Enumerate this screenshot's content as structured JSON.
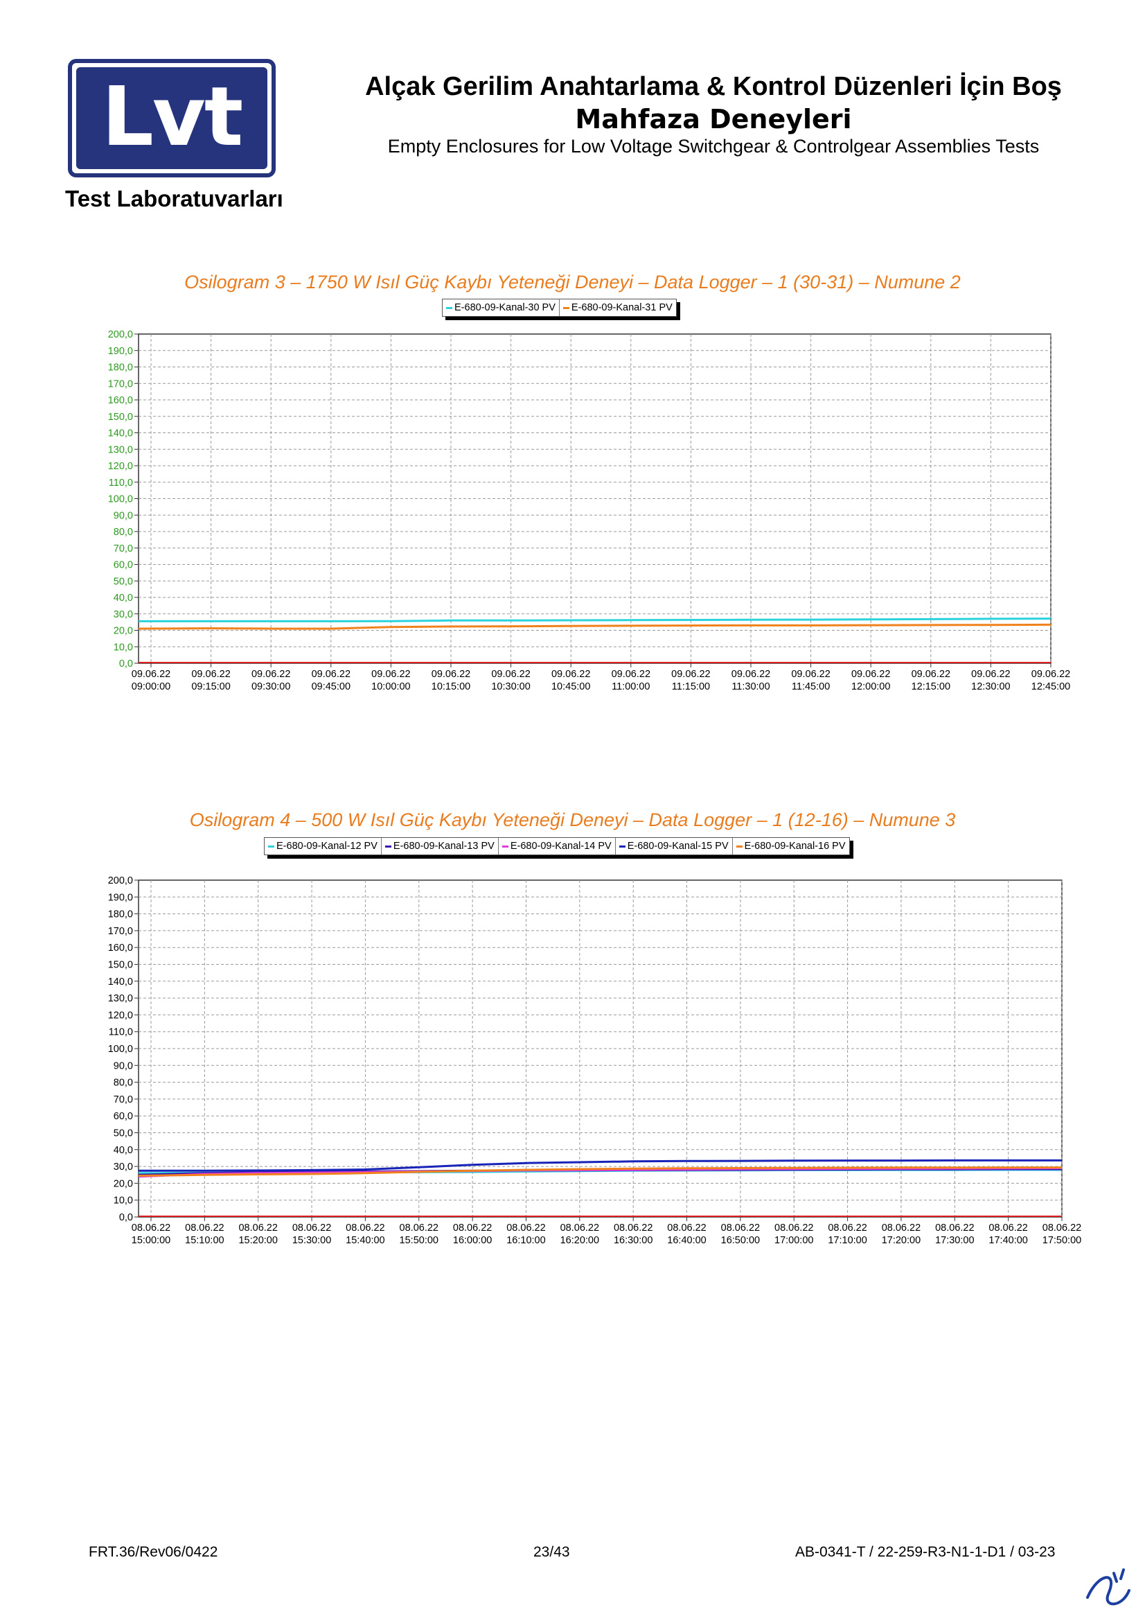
{
  "header": {
    "logo_text": "Lvt",
    "lab_name": "Test Laboratuvarları",
    "title_line1": "Alçak Gerilim Anahtarlama & Kontrol Düzenleri İçin Boş",
    "title_line2": "Mahfaza Deneyleri",
    "title_en": "Empty Enclosures for Low Voltage Switchgear & Controlgear Assemblies Tests"
  },
  "chart_data": [
    {
      "type": "line",
      "title": "Osilogram 3 – 1750 W Isıl Güç Kaybı Yeteneği Deneyi – Data Logger – 1 (30-31) – Numune 2",
      "xlabel": "",
      "ylabel": "",
      "ylim": [
        0,
        200
      ],
      "y_ticks": [
        "200,0",
        "190,0",
        "180,0",
        "170,0",
        "160,0",
        "150,0",
        "140,0",
        "130,0",
        "120,0",
        "110,0",
        "100,0",
        "90,0",
        "80,0",
        "70,0",
        "60,0",
        "50,0",
        "40,0",
        "30,0",
        "20,0",
        "10,0",
        "0,0"
      ],
      "y_tick_color": "#2a9a1c",
      "x_ticks": [
        [
          "09.06.22",
          "09:00:00"
        ],
        [
          "09.06.22",
          "09:15:00"
        ],
        [
          "09.06.22",
          "09:30:00"
        ],
        [
          "09.06.22",
          "09:45:00"
        ],
        [
          "09.06.22",
          "10:00:00"
        ],
        [
          "09.06.22",
          "10:15:00"
        ],
        [
          "09.06.22",
          "10:30:00"
        ],
        [
          "09.06.22",
          "10:45:00"
        ],
        [
          "09.06.22",
          "11:00:00"
        ],
        [
          "09.06.22",
          "11:15:00"
        ],
        [
          "09.06.22",
          "11:30:00"
        ],
        [
          "09.06.22",
          "11:45:00"
        ],
        [
          "09.06.22",
          "12:00:00"
        ],
        [
          "09.06.22",
          "12:15:00"
        ],
        [
          "09.06.22",
          "12:30:00"
        ],
        [
          "09.06.22",
          "12:45:00"
        ]
      ],
      "grid": true,
      "legend_position": "top",
      "x": [
        "09:00",
        "09:15",
        "09:30",
        "09:45",
        "10:00",
        "10:15",
        "10:30",
        "10:45",
        "11:00",
        "11:15",
        "11:30",
        "11:45",
        "12:00",
        "12:15",
        "12:30",
        "12:45",
        "12:48"
      ],
      "series": [
        {
          "name": "E-680-09-Kanal-30 PV",
          "color": "#2ad3dc",
          "values": [
            25.5,
            25.5,
            25.5,
            25.5,
            25.6,
            26.0,
            26.0,
            26.1,
            26.2,
            26.3,
            26.4,
            26.5,
            26.6,
            26.8,
            27.0,
            27.1,
            27.1
          ]
        },
        {
          "name": "E-680-09-Kanal-31 PV",
          "color": "#f0821e",
          "values": [
            21.0,
            21.2,
            21.0,
            21.0,
            22.0,
            22.3,
            22.4,
            22.6,
            22.8,
            22.9,
            23.0,
            23.0,
            23.1,
            23.2,
            23.3,
            23.4,
            23.4
          ]
        }
      ]
    },
    {
      "type": "line",
      "title": "Osilogram 4 – 500 W Isıl Güç Kaybı Yeteneği Deneyi – Data Logger – 1 (12-16) – Numune 3",
      "xlabel": "",
      "ylabel": "",
      "ylim": [
        0,
        200
      ],
      "y_ticks": [
        "200,0",
        "190,0",
        "180,0",
        "170,0",
        "160,0",
        "150,0",
        "140,0",
        "130,0",
        "120,0",
        "110,0",
        "100,0",
        "90,0",
        "80,0",
        "70,0",
        "60,0",
        "50,0",
        "40,0",
        "30,0",
        "20,0",
        "10,0",
        "0,0"
      ],
      "y_tick_color": "#000000",
      "x_ticks": [
        [
          "08.06.22",
          "15:00:00"
        ],
        [
          "08.06.22",
          "15:10:00"
        ],
        [
          "08.06.22",
          "15:20:00"
        ],
        [
          "08.06.22",
          "15:30:00"
        ],
        [
          "08.06.22",
          "15:40:00"
        ],
        [
          "08.06.22",
          "15:50:00"
        ],
        [
          "08.06.22",
          "16:00:00"
        ],
        [
          "08.06.22",
          "16:10:00"
        ],
        [
          "08.06.22",
          "16:20:00"
        ],
        [
          "08.06.22",
          "16:30:00"
        ],
        [
          "08.06.22",
          "16:40:00"
        ],
        [
          "08.06.22",
          "16:50:00"
        ],
        [
          "08.06.22",
          "17:00:00"
        ],
        [
          "08.06.22",
          "17:10:00"
        ],
        [
          "08.06.22",
          "17:20:00"
        ],
        [
          "08.06.22",
          "17:30:00"
        ],
        [
          "08.06.22",
          "17:40:00"
        ],
        [
          "08.06.22",
          "17:50:00"
        ]
      ],
      "grid": true,
      "legend_position": "top",
      "x": [
        "15:00",
        "15:10",
        "15:20",
        "15:30",
        "15:40",
        "15:50",
        "16:00",
        "16:10",
        "16:20",
        "16:30",
        "16:40",
        "16:50",
        "17:00",
        "17:10",
        "17:20",
        "17:30",
        "17:40",
        "17:50",
        "17:52"
      ],
      "series": [
        {
          "name": "E-680-09-Kanal-12 PV",
          "color": "#2ad3dc",
          "values": [
            26.0,
            26.2,
            26.3,
            26.4,
            26.5,
            26.6,
            26.7,
            27.0,
            27.3,
            27.5,
            27.6,
            27.7,
            27.8,
            27.8,
            27.9,
            27.9,
            28.0,
            28.0,
            28.0
          ]
        },
        {
          "name": "E-680-09-Kanal-13 PV",
          "color": "#3a13a8",
          "values": [
            25.0,
            26.0,
            26.5,
            26.8,
            27.0,
            27.2,
            27.5,
            27.6,
            27.7,
            27.8,
            27.9,
            28.0,
            28.1,
            28.2,
            28.3,
            28.3,
            28.4,
            28.4,
            28.4
          ]
        },
        {
          "name": "E-680-09-Kanal-14 PV",
          "color": "#e23ce0",
          "values": [
            24.0,
            25.5,
            26.0,
            26.3,
            26.6,
            27.0,
            27.3,
            27.6,
            27.8,
            28.0,
            28.2,
            28.4,
            28.5,
            28.6,
            28.7,
            28.8,
            28.9,
            29.0,
            29.0
          ]
        },
        {
          "name": "E-680-09-Kanal-15 PV",
          "color": "#1823b8",
          "values": [
            27.5,
            27.5,
            27.6,
            27.8,
            28.2,
            29.5,
            31.0,
            32.0,
            32.5,
            33.0,
            33.2,
            33.3,
            33.4,
            33.5,
            33.5,
            33.6,
            33.6,
            33.6,
            33.6
          ]
        },
        {
          "name": "E-680-09-Kanal-16 PV",
          "color": "#f0821e",
          "values": [
            24.5,
            25.0,
            25.3,
            25.5,
            26.0,
            26.8,
            27.5,
            28.0,
            28.4,
            28.7,
            28.9,
            29.0,
            29.1,
            29.2,
            29.3,
            29.3,
            29.4,
            29.4,
            29.4
          ]
        }
      ]
    }
  ],
  "footer": {
    "form_code": "FRT.36/Rev06/0422",
    "page": "23/43",
    "report_no": "AB-0341-T / 22-259-R3-N1-1-D1 / 03-23"
  }
}
